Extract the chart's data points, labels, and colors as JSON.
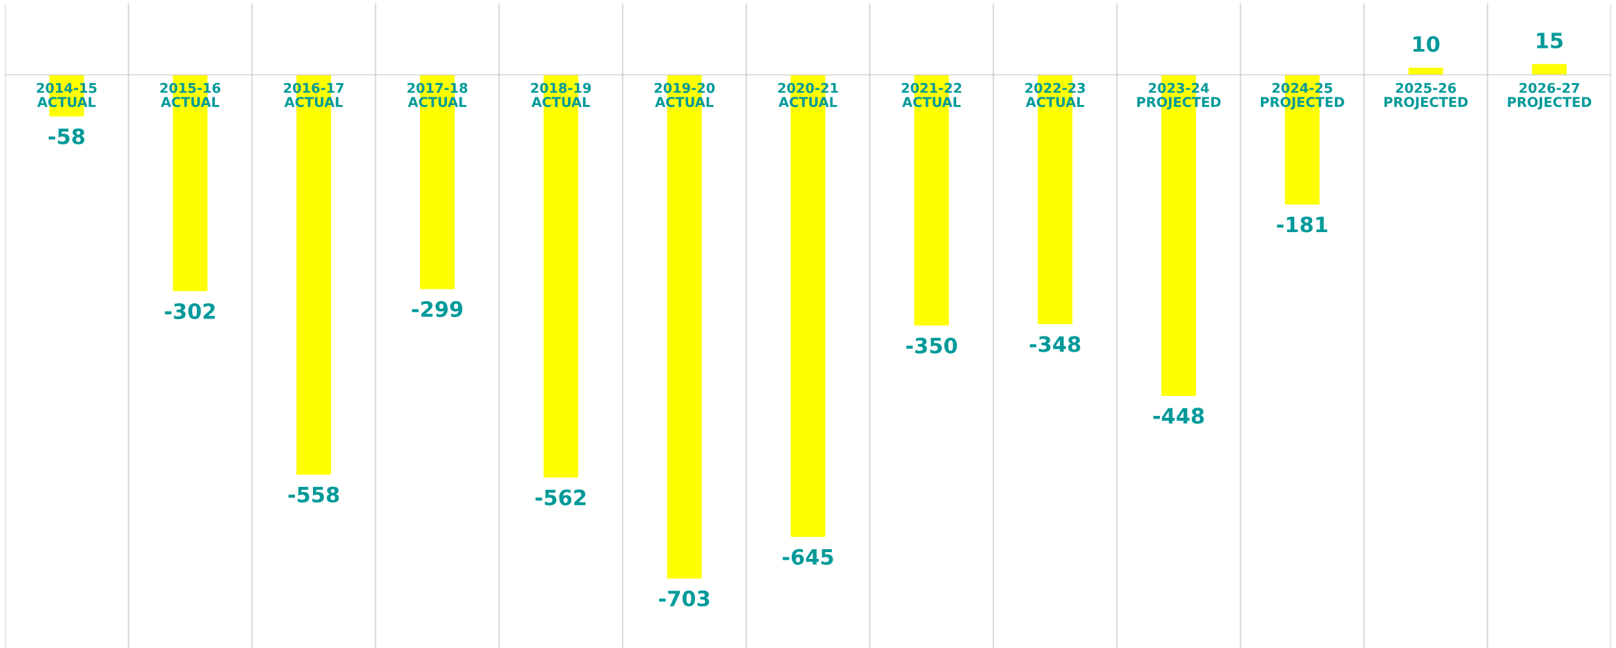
{
  "chart_data": {
    "type": "bar",
    "categories": [
      "2014-15\nACTUAL",
      "2015-16\nACTUAL",
      "2016-17\nACTUAL",
      "2017-18\nACTUAL",
      "2018-19\nACTUAL",
      "2019-20\nACTUAL",
      "2020-21\nACTUAL",
      "2021-22\nACTUAL",
      "2022-23\nACTUAL",
      "2023-24\nPROJECTED",
      "2024-25\nPROJECTED",
      "2025-26\nPROJECTED",
      "2026-27\nPROJECTED"
    ],
    "values": [
      -58,
      -302,
      -558,
      -299,
      -562,
      -703,
      -645,
      -350,
      -348,
      -448,
      -181,
      10,
      15
    ],
    "color": "#ffff00",
    "relative": false,
    "ylim": [
      -800,
      100
    ],
    "data_labels": true,
    "grid": "x"
  }
}
